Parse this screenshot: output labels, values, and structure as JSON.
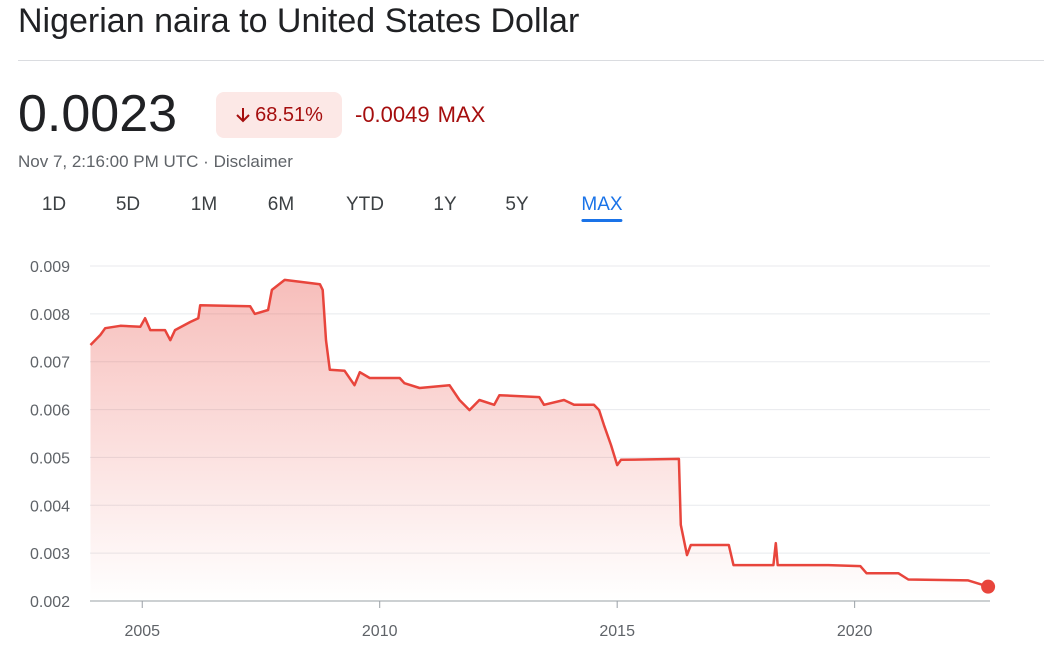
{
  "header": {
    "title": "Nigerian naira to United States Dollar",
    "price": "0.0023",
    "change_percent": "68.51%",
    "change_value": "-0.0049",
    "period": "MAX",
    "timestamp": "Nov 7, 2:16:00 PM UTC · Disclaimer"
  },
  "tabs": [
    "1D",
    "5D",
    "1M",
    "6M",
    "YTD",
    "1Y",
    "5Y",
    "MAX"
  ],
  "selected_tab": 7,
  "chart_data": {
    "type": "line",
    "color": "#e8453c",
    "grid": true,
    "x": [
      2003.91,
      2004.12,
      2004.22,
      2004.54,
      2004.96,
      2005.06,
      2005.17,
      2005.48,
      2005.59,
      2005.69,
      2006.01,
      2006.18,
      2006.22,
      2007.27,
      2007.37,
      2007.65,
      2007.73,
      2008.0,
      2008.74,
      2008.8,
      2008.87,
      2008.95,
      2009.26,
      2009.47,
      2009.58,
      2009.79,
      2010.42,
      2010.52,
      2010.84,
      2011.47,
      2011.68,
      2011.89,
      2012.1,
      2012.41,
      2012.52,
      2013.36,
      2013.46,
      2013.88,
      2014.09,
      2014.51,
      2014.62,
      2014.72,
      2014.87,
      2015.0,
      2015.08,
      2016.3,
      2016.34,
      2016.47,
      2016.55,
      2017.35,
      2017.45,
      2018.29,
      2018.34,
      2018.38,
      2019.45,
      2020.12,
      2020.25,
      2020.92,
      2021.13,
      2022.39,
      2022.81
    ],
    "values": [
      0.00735,
      0.00756,
      0.0077,
      0.00775,
      0.00773,
      0.00791,
      0.00766,
      0.00766,
      0.00745,
      0.00766,
      0.00783,
      0.00791,
      0.00818,
      0.00816,
      0.008,
      0.00808,
      0.0085,
      0.00871,
      0.00862,
      0.0085,
      0.00745,
      0.00683,
      0.00681,
      0.00651,
      0.00678,
      0.00666,
      0.00666,
      0.00655,
      0.00645,
      0.00651,
      0.0062,
      0.00599,
      0.0062,
      0.0061,
      0.0063,
      0.00626,
      0.0061,
      0.0062,
      0.0061,
      0.0061,
      0.00599,
      0.00568,
      0.00526,
      0.00484,
      0.00495,
      0.00497,
      0.00359,
      0.00296,
      0.00317,
      0.00317,
      0.00275,
      0.00275,
      0.00321,
      0.00275,
      0.00275,
      0.00273,
      0.00258,
      0.00258,
      0.00245,
      0.00243,
      0.0023
    ],
    "xlim": [
      2003.9,
      2022.85
    ],
    "xticks": [
      2005,
      2010,
      2015,
      2020
    ],
    "ylim": [
      0.002,
      0.009
    ],
    "yticks": [
      0.002,
      0.003,
      0.004,
      0.005,
      0.006,
      0.007,
      0.008,
      0.009
    ]
  }
}
